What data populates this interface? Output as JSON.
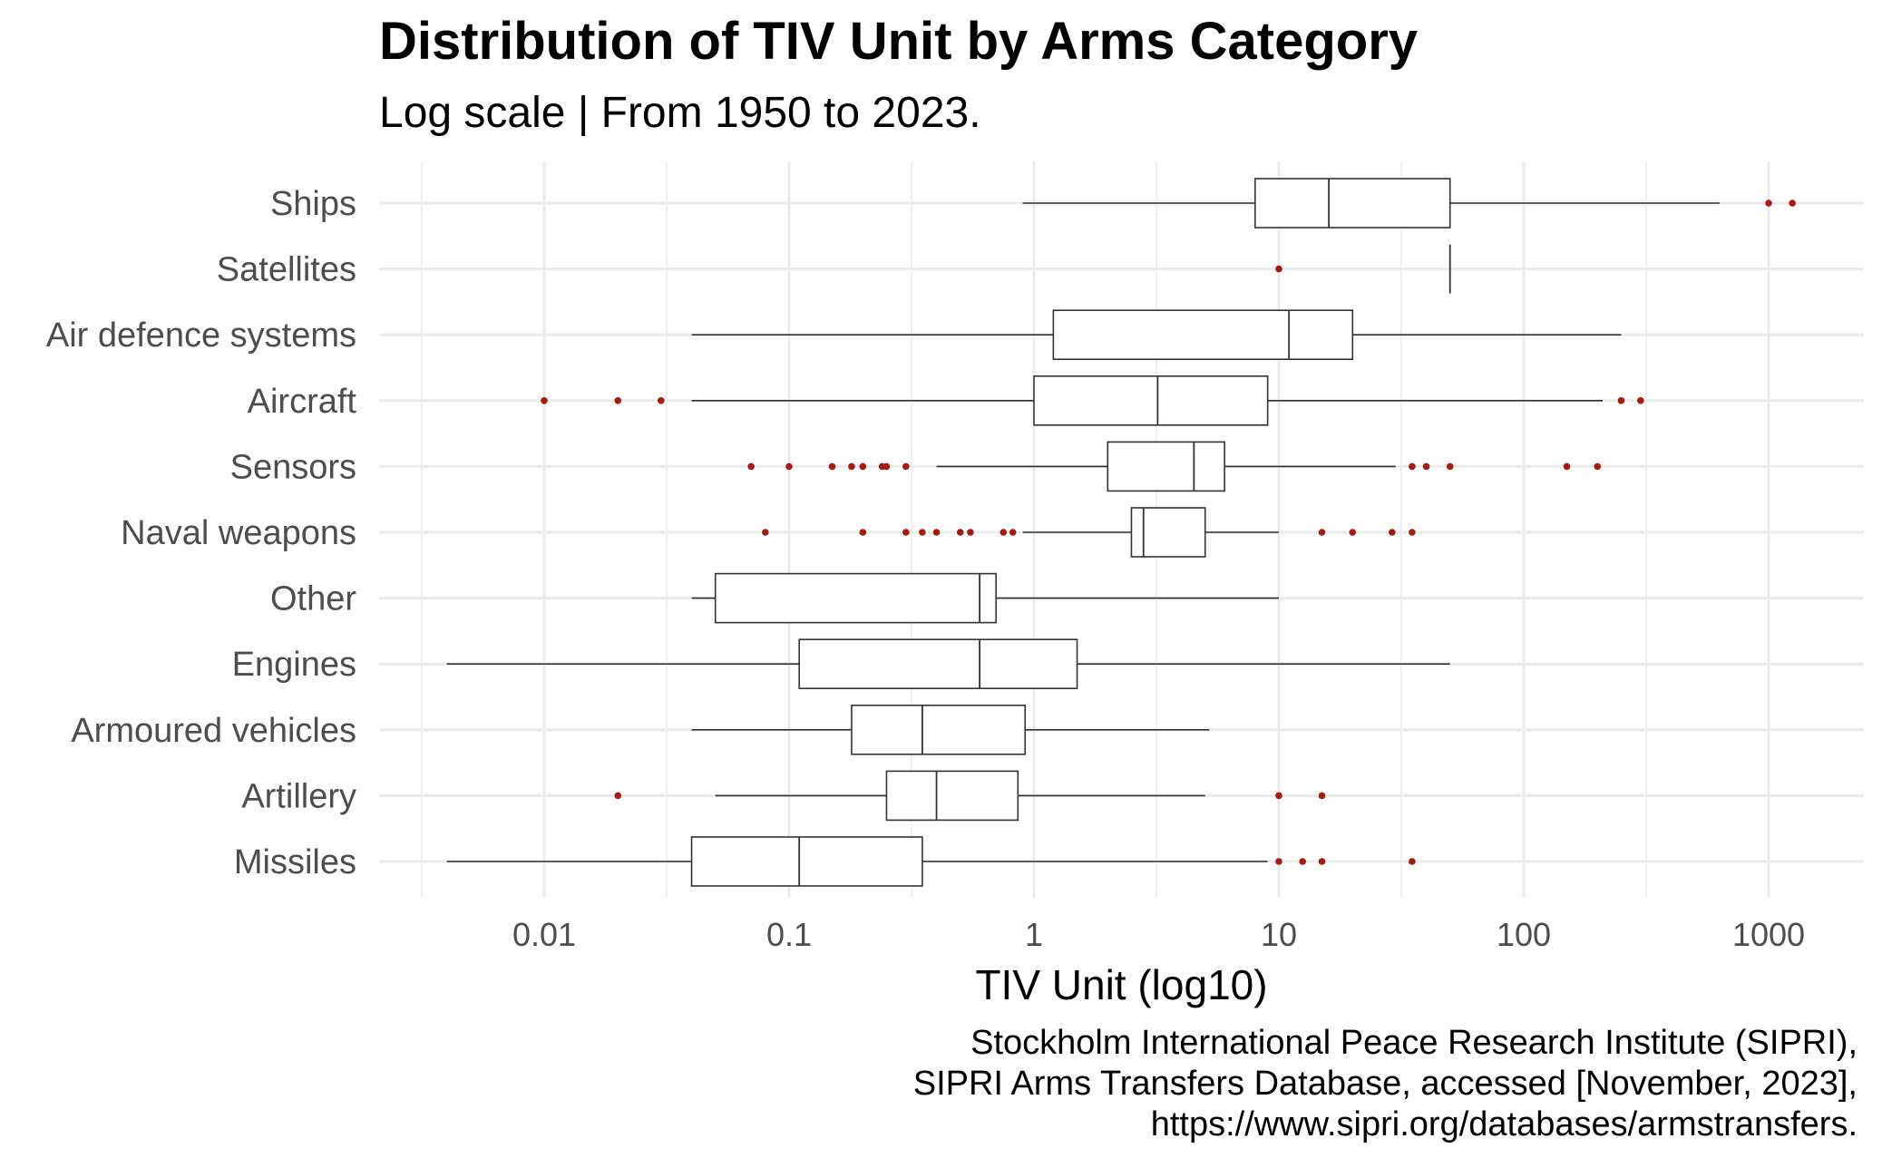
{
  "chart_data": {
    "type": "box",
    "title": "Distribution of TIV Unit by Arms Category",
    "subtitle": "Log scale | From 1950 to 2023.",
    "xlabel": "TIV Unit (log10)",
    "ylabel": "",
    "x_scale": "log10",
    "xlim": [
      0.003,
      2500
    ],
    "x_ticks": [
      {
        "value": 0.01,
        "label": "0.01"
      },
      {
        "value": 0.1,
        "label": "0.1"
      },
      {
        "value": 1,
        "label": "1"
      },
      {
        "value": 10,
        "label": "10"
      },
      {
        "value": 100,
        "label": "100"
      },
      {
        "value": 1000,
        "label": "1000"
      }
    ],
    "grid": true,
    "legend": "none",
    "colors": {
      "box_line": "#333333",
      "outlier": "#a61b0f",
      "grid": "#ebebeb"
    },
    "caption": [
      "Stockholm International Peace Research Institute (SIPRI),",
      "SIPRI Arms Transfers Database, accessed [November, 2023],",
      "https://www.sipri.org/databases/armstransfers."
    ],
    "categories": [
      "Ships",
      "Satellites",
      "Air defence systems",
      "Aircraft",
      "Sensors",
      "Naval weapons",
      "Other",
      "Engines",
      "Armoured vehicles",
      "Artillery",
      "Missiles"
    ],
    "boxes": [
      {
        "category": "Ships",
        "whisker_low": 0.9,
        "q1": 8,
        "median": 16,
        "q3": 50,
        "whisker_high": 630,
        "outliers": [
          1000,
          1250
        ]
      },
      {
        "category": "Satellites",
        "whisker_low": 50,
        "q1": 50,
        "median": 50,
        "q3": 50,
        "whisker_high": 50,
        "outliers": [
          10
        ]
      },
      {
        "category": "Air defence systems",
        "whisker_low": 0.04,
        "q1": 1.2,
        "median": 11,
        "q3": 20,
        "whisker_high": 250,
        "outliers": []
      },
      {
        "category": "Aircraft",
        "whisker_low": 0.04,
        "q1": 1,
        "median": 3.2,
        "q3": 9,
        "whisker_high": 210,
        "outliers": [
          0.01,
          0.02,
          0.03,
          250,
          300
        ]
      },
      {
        "category": "Sensors",
        "whisker_low": 0.4,
        "q1": 2,
        "median": 4.5,
        "q3": 6,
        "whisker_high": 30,
        "outliers": [
          0.07,
          0.1,
          0.15,
          0.18,
          0.2,
          0.24,
          0.25,
          0.3,
          35,
          40,
          50,
          150,
          200
        ]
      },
      {
        "category": "Naval weapons",
        "whisker_low": 0.9,
        "q1": 2.5,
        "median": 2.8,
        "q3": 5,
        "whisker_high": 10,
        "outliers": [
          0.08,
          0.2,
          0.3,
          0.35,
          0.4,
          0.5,
          0.55,
          0.75,
          0.82,
          15,
          20,
          29,
          35
        ]
      },
      {
        "category": "Other",
        "whisker_low": 0.04,
        "q1": 0.05,
        "median": 0.6,
        "q3": 0.7,
        "whisker_high": 10,
        "outliers": []
      },
      {
        "category": "Engines",
        "whisker_low": 0.004,
        "q1": 0.11,
        "median": 0.6,
        "q3": 1.5,
        "whisker_high": 50,
        "outliers": []
      },
      {
        "category": "Armoured vehicles",
        "whisker_low": 0.04,
        "q1": 0.18,
        "median": 0.35,
        "q3": 0.92,
        "whisker_high": 5.2,
        "outliers": []
      },
      {
        "category": "Artillery",
        "whisker_low": 0.05,
        "q1": 0.25,
        "median": 0.4,
        "q3": 0.86,
        "whisker_high": 5,
        "outliers": [
          0.02,
          10,
          15
        ]
      },
      {
        "category": "Missiles",
        "whisker_low": 0.004,
        "q1": 0.04,
        "median": 0.11,
        "q3": 0.35,
        "whisker_high": 9,
        "outliers": [
          10,
          12.5,
          15,
          35
        ]
      }
    ]
  }
}
